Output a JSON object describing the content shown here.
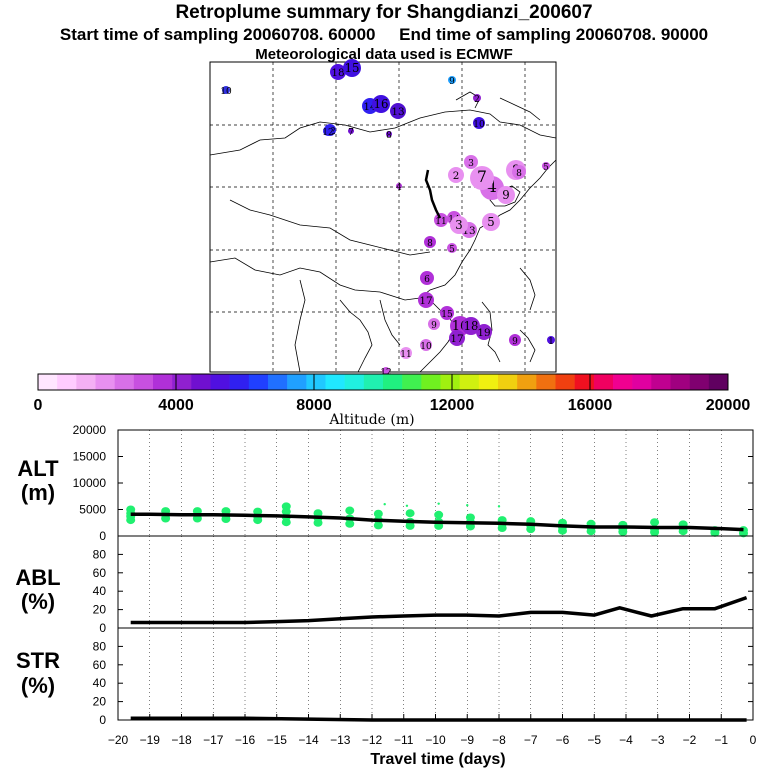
{
  "header": {
    "title": "Retroplume summary for Shangdianzi_200607",
    "start_label": "Start time of sampling 20060708. 60000",
    "end_label": "End time of sampling 20060708. 90000",
    "met_label": "Meteorological data used is ECMWF"
  },
  "colorbar": {
    "label": "Altitude (m)",
    "ticks": [
      "0",
      "4000",
      "8000",
      "12000",
      "16000",
      "20000"
    ],
    "colors": [
      "#ffe6ff",
      "#ffccff",
      "#f4b0f4",
      "#e890f0",
      "#d870e8",
      "#c850e0",
      "#b030d8",
      "#9020d0",
      "#7010d0",
      "#5010e0",
      "#3020f0",
      "#2040ff",
      "#2070ff",
      "#20a0ff",
      "#20c8ff",
      "#20e8ff",
      "#20f0e0",
      "#20f0b0",
      "#20f080",
      "#40f050",
      "#70f020",
      "#a0f010",
      "#d0f010",
      "#f0f010",
      "#f0d010",
      "#f0a010",
      "#f07010",
      "#f04010",
      "#f01020",
      "#f00060",
      "#f00090",
      "#e000a0",
      "#c00090",
      "#a00080",
      "#800070",
      "#600060"
    ]
  },
  "map_points": [
    {
      "label": "10",
      "color": "#3030e0",
      "size": 4
    },
    {
      "label": "18",
      "color": "#5010e0",
      "size": 8
    },
    {
      "label": "15",
      "color": "#4010e0",
      "size": 9
    },
    {
      "label": "14",
      "color": "#3020f0",
      "size": 8
    },
    {
      "label": "16",
      "color": "#4010e0",
      "size": 9
    },
    {
      "label": "13",
      "color": "#5010d0",
      "size": 8
    },
    {
      "label": "9",
      "color": "#20a0ff",
      "size": 4
    },
    {
      "label": "12",
      "color": "#3020f0",
      "size": 6
    },
    {
      "label": "10",
      "color": "#4010e0",
      "size": 6
    },
    {
      "label": "12",
      "color": "#3020f0",
      "size": 5
    },
    {
      "label": "7",
      "color": "#7010d0",
      "size": 3
    },
    {
      "label": "8",
      "color": "#7010d0",
      "size": 3
    },
    {
      "label": "4",
      "color": "#b030d8",
      "size": 3
    },
    {
      "label": "8",
      "color": "#e890f0",
      "size": 10
    },
    {
      "label": "5",
      "color": "#c850e0",
      "size": 4
    },
    {
      "label": "8",
      "color": "#d870e8",
      "size": 7
    },
    {
      "label": "4",
      "color": "#d870e8",
      "size": 12
    },
    {
      "label": "3",
      "color": "#d870e8",
      "size": 7
    },
    {
      "label": "7",
      "color": "#e890f0",
      "size": 12
    },
    {
      "label": "9",
      "color": "#e890f0",
      "size": 9
    },
    {
      "label": "2",
      "color": "#e890f0",
      "size": 8
    },
    {
      "label": "5",
      "color": "#e890f0",
      "size": 9
    },
    {
      "label": "11",
      "color": "#c850e0",
      "size": 7
    },
    {
      "label": "14",
      "color": "#c850e0",
      "size": 7
    },
    {
      "label": "13",
      "color": "#d870e8",
      "size": 8
    },
    {
      "label": "3",
      "color": "#e890f0",
      "size": 9
    },
    {
      "label": "8",
      "color": "#b030d8",
      "size": 6
    },
    {
      "label": "5",
      "color": "#c850e0",
      "size": 5
    },
    {
      "label": "6",
      "color": "#b030d8",
      "size": 7
    },
    {
      "label": "17",
      "color": "#b030d8",
      "size": 8
    },
    {
      "label": "15",
      "color": "#b030d8",
      "size": 7
    },
    {
      "label": "9",
      "color": "#d870e8",
      "size": 6
    },
    {
      "label": "16",
      "color": "#b030d8",
      "size": 10
    },
    {
      "label": "18",
      "color": "#9020d0",
      "size": 9
    },
    {
      "label": "19",
      "color": "#9020d0",
      "size": 8
    },
    {
      "label": "17",
      "color": "#9020d0",
      "size": 8
    },
    {
      "label": "10",
      "color": "#d870e8",
      "size": 6
    },
    {
      "label": "9",
      "color": "#b030d8",
      "size": 6
    },
    {
      "label": "11",
      "color": "#e890f0",
      "size": 6
    },
    {
      "label": "12",
      "color": "#c850e0",
      "size": 4
    },
    {
      "label": "1",
      "color": "#5010e0",
      "size": 4
    },
    {
      "label": "2",
      "color": "#9020d0",
      "size": 4
    }
  ],
  "chart_data": [
    {
      "type": "line",
      "panel": "ALT",
      "title": "ALT",
      "ylabel": "(m)",
      "xlabel": "Travel time (days)",
      "ylim": [
        0,
        20000
      ],
      "yticks": [
        0,
        5000,
        10000,
        15000,
        20000
      ],
      "x": [
        -19.6,
        -19,
        -18,
        -17,
        -16,
        -15,
        -14,
        -13,
        -12,
        -11,
        -10,
        -9,
        -8,
        -7,
        -6,
        -5,
        -4,
        -3,
        -2,
        -1,
        -0.3
      ],
      "values": [
        4100,
        4100,
        4000,
        4000,
        3900,
        3800,
        3600,
        3400,
        3000,
        2800,
        2600,
        2500,
        2400,
        2200,
        1900,
        1700,
        1700,
        1600,
        1600,
        1400,
        1200
      ],
      "scatter_color": "#20f070",
      "scatter_points": [
        {
          "x": -19.6,
          "y": 3000
        },
        {
          "x": -19.6,
          "y": 3700
        },
        {
          "x": -19.6,
          "y": 4300
        },
        {
          "x": -19.6,
          "y": 5000
        },
        {
          "x": -18.5,
          "y": 3300
        },
        {
          "x": -18.5,
          "y": 4000
        },
        {
          "x": -18.5,
          "y": 4700
        },
        {
          "x": -17.5,
          "y": 3300
        },
        {
          "x": -17.5,
          "y": 4000
        },
        {
          "x": -17.5,
          "y": 4700
        },
        {
          "x": -16.6,
          "y": 3200
        },
        {
          "x": -16.6,
          "y": 3900
        },
        {
          "x": -16.6,
          "y": 4700
        },
        {
          "x": -15.6,
          "y": 3000
        },
        {
          "x": -15.6,
          "y": 3700
        },
        {
          "x": -15.6,
          "y": 4600
        },
        {
          "x": -14.7,
          "y": 2600
        },
        {
          "x": -14.7,
          "y": 3600
        },
        {
          "x": -14.7,
          "y": 4600
        },
        {
          "x": -14.7,
          "y": 5600
        },
        {
          "x": -13.7,
          "y": 2500
        },
        {
          "x": -13.7,
          "y": 3400
        },
        {
          "x": -13.7,
          "y": 4300
        },
        {
          "x": -12.7,
          "y": 2300
        },
        {
          "x": -12.7,
          "y": 3300
        },
        {
          "x": -12.7,
          "y": 4800
        },
        {
          "x": -11.8,
          "y": 2000
        },
        {
          "x": -11.8,
          "y": 3000
        },
        {
          "x": -11.8,
          "y": 4200
        },
        {
          "x": -10.8,
          "y": 1900
        },
        {
          "x": -10.8,
          "y": 2700
        },
        {
          "x": -10.8,
          "y": 4300
        },
        {
          "x": -9.9,
          "y": 1900
        },
        {
          "x": -9.9,
          "y": 2700
        },
        {
          "x": -9.9,
          "y": 4000
        },
        {
          "x": -8.9,
          "y": 1800
        },
        {
          "x": -8.9,
          "y": 2600
        },
        {
          "x": -8.9,
          "y": 3500
        },
        {
          "x": -7.9,
          "y": 1500
        },
        {
          "x": -7.9,
          "y": 2300
        },
        {
          "x": -7.9,
          "y": 3000
        },
        {
          "x": -7.0,
          "y": 1300
        },
        {
          "x": -7.0,
          "y": 2000
        },
        {
          "x": -7.0,
          "y": 2800
        },
        {
          "x": -6.0,
          "y": 1000
        },
        {
          "x": -6.0,
          "y": 1700
        },
        {
          "x": -6.0,
          "y": 2500
        },
        {
          "x": -5.1,
          "y": 900
        },
        {
          "x": -5.1,
          "y": 1600
        },
        {
          "x": -5.1,
          "y": 2300
        },
        {
          "x": -4.1,
          "y": 800
        },
        {
          "x": -4.1,
          "y": 1400
        },
        {
          "x": -4.1,
          "y": 2100
        },
        {
          "x": -3.1,
          "y": 700
        },
        {
          "x": -3.1,
          "y": 1300
        },
        {
          "x": -3.1,
          "y": 2600
        },
        {
          "x": -2.2,
          "y": 900
        },
        {
          "x": -2.2,
          "y": 1500
        },
        {
          "x": -2.2,
          "y": 2200
        },
        {
          "x": -1.2,
          "y": 600
        },
        {
          "x": -1.2,
          "y": 1100
        },
        {
          "x": -0.3,
          "y": 500
        },
        {
          "x": -0.3,
          "y": 1100
        }
      ],
      "scatter_small": [
        {
          "x": -11.6,
          "y": 6000
        },
        {
          "x": -10.9,
          "y": 5700
        },
        {
          "x": -9.9,
          "y": 6100
        },
        {
          "x": -9.0,
          "y": 5800
        },
        {
          "x": -8.0,
          "y": 5600
        },
        {
          "x": -14.7,
          "y": 5900
        }
      ]
    },
    {
      "type": "line",
      "panel": "ABL",
      "title": "ABL",
      "ylabel": "(%)",
      "ylim": [
        0,
        100
      ],
      "yticks": [
        0,
        20,
        40,
        60,
        80
      ],
      "x": [
        -19.6,
        -19,
        -18,
        -17,
        -16,
        -15,
        -14,
        -13,
        -12,
        -11,
        -10,
        -9,
        -8,
        -7,
        -6,
        -5,
        -4.2,
        -3.2,
        -2.2,
        -1.2,
        -0.2
      ],
      "values": [
        6,
        6,
        6,
        6,
        6,
        7,
        8,
        10,
        12,
        13,
        14,
        14,
        13,
        17,
        17,
        14,
        22,
        13,
        21,
        21,
        33
      ]
    },
    {
      "type": "line",
      "panel": "STR",
      "title": "STR",
      "ylabel": "(%)",
      "xlabel": "Travel time (days)",
      "ylim": [
        0,
        100
      ],
      "yticks": [
        0,
        20,
        40,
        60,
        80
      ],
      "xlim": [
        -20,
        0
      ],
      "xticks": [
        "−20",
        "−19",
        "−18",
        "−17",
        "−16",
        "−15",
        "−14",
        "−13",
        "−12",
        "−11",
        "−10",
        "−9",
        "−8",
        "−7",
        "−6",
        "−5",
        "−4",
        "−3",
        "−2",
        "−1",
        "0"
      ],
      "x": [
        -19.6,
        -18,
        -16,
        -14,
        -12,
        -10,
        -8,
        -6,
        -4,
        -2,
        -0.2
      ],
      "values": [
        2,
        2,
        2,
        1,
        0,
        0,
        0,
        0,
        0,
        0,
        0
      ]
    }
  ]
}
